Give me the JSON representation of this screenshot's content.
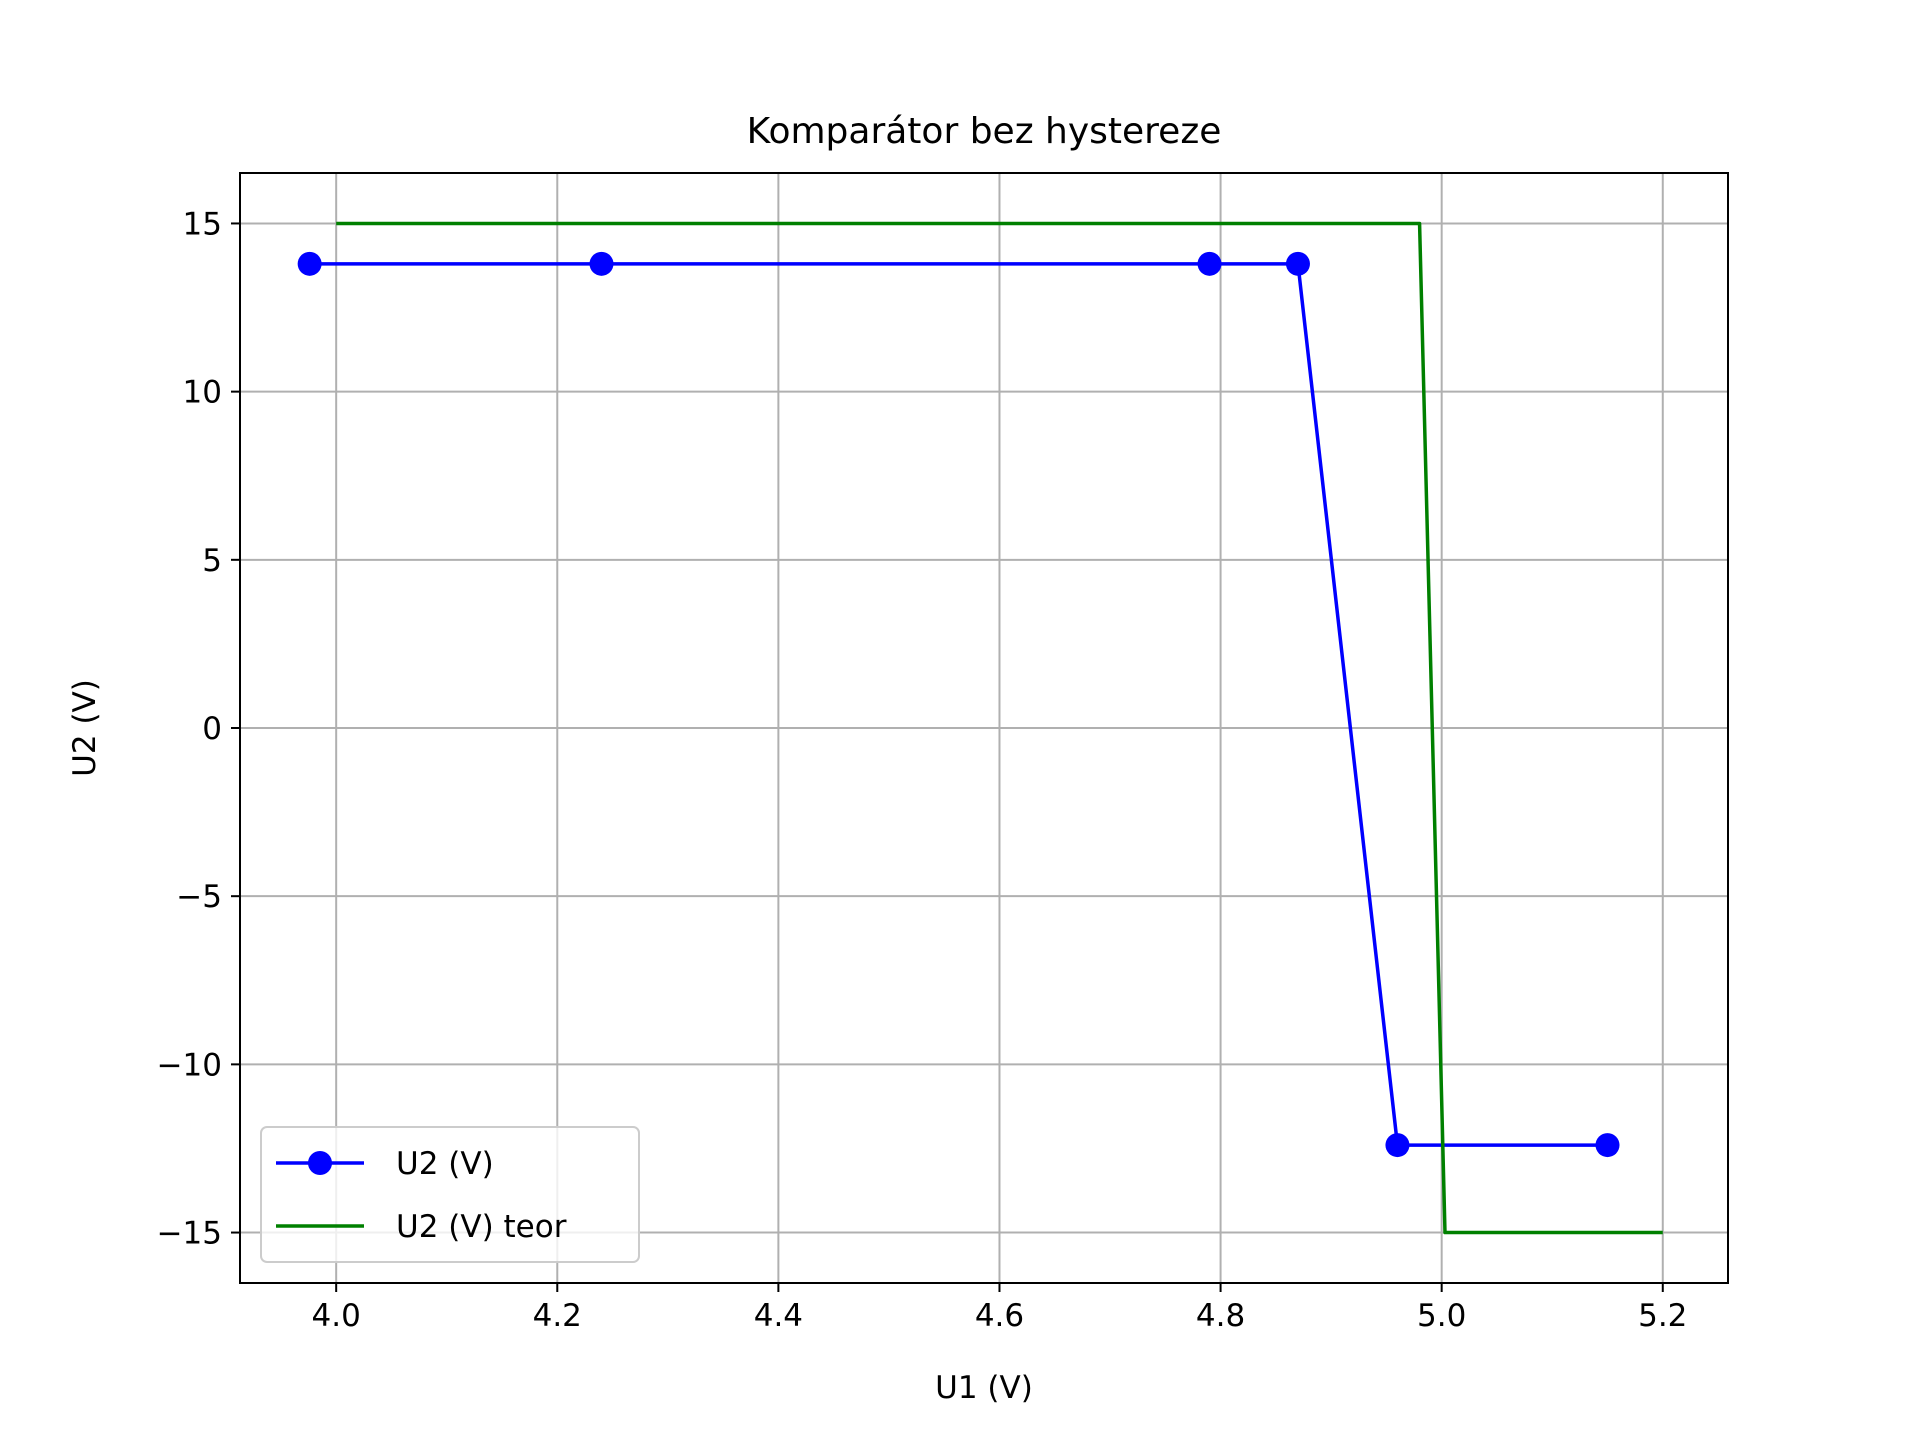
{
  "chart_data": {
    "type": "line",
    "title": "Komparátor bez hystereze",
    "xlabel": "U1 (V)",
    "ylabel": "U2 (V)",
    "xlim": [
      3.913,
      5.259
    ],
    "ylim": [
      -16.5,
      16.5
    ],
    "xticks": [
      4.0,
      4.2,
      4.4,
      4.6,
      4.8,
      5.0,
      5.2
    ],
    "xtick_labels": [
      "4.0",
      "4.2",
      "4.4",
      "4.6",
      "4.8",
      "5.0",
      "5.2"
    ],
    "yticks": [
      15,
      10,
      5,
      0,
      -5,
      -10,
      -15
    ],
    "ytick_labels": [
      "15",
      "10",
      "5",
      "0",
      "−5",
      "−10",
      "−15"
    ],
    "grid": true,
    "legend_position": "lower-left",
    "series": [
      {
        "name": "U2 (V)",
        "color": "#0000ff",
        "marker": "circle",
        "x": [
          3.976,
          4.24,
          4.79,
          4.87,
          4.96,
          5.15
        ],
        "y": [
          13.8,
          13.8,
          13.8,
          13.8,
          -12.4,
          -12.4
        ]
      },
      {
        "name": "U2 (V) teor",
        "color": "#008000",
        "marker": "none",
        "x": [
          4.0,
          4.98,
          5.003,
          5.2
        ],
        "y": [
          15.0,
          15.0,
          -15.0,
          -15.0
        ]
      }
    ]
  }
}
